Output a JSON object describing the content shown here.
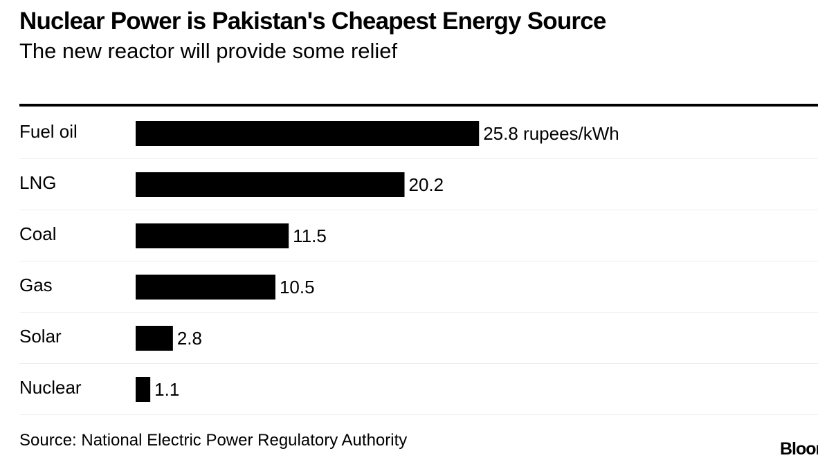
{
  "header": {
    "title": "Nuclear Power is Pakistan's Cheapest Energy Source",
    "subtitle": "The new reactor will provide some relief"
  },
  "chart_data": {
    "type": "bar",
    "orientation": "horizontal",
    "title": "Nuclear Power is Pakistan's Cheapest Energy Source",
    "subtitle": "The new reactor will provide some relief",
    "categories": [
      "Fuel oil",
      "LNG",
      "Coal",
      "Gas",
      "Solar",
      "Nuclear"
    ],
    "values": [
      25.8,
      20.2,
      11.5,
      10.5,
      2.8,
      1.1
    ],
    "value_labels": [
      "25.8 rupees/kWh",
      "20.2",
      "11.5",
      "10.5",
      "2.8",
      "1.1"
    ],
    "unit": "rupees/kWh",
    "bar_color": "#000000",
    "xlim": [
      0,
      60
    ],
    "grid": false,
    "legend": "none"
  },
  "footer": {
    "source": "Source: National Electric Power Regulatory Authority",
    "logo_text": "Bloomberg"
  },
  "colors": {
    "text": "#000000",
    "bar": "#000000",
    "row_divider": "#eeeeee",
    "background": "#ffffff"
  }
}
